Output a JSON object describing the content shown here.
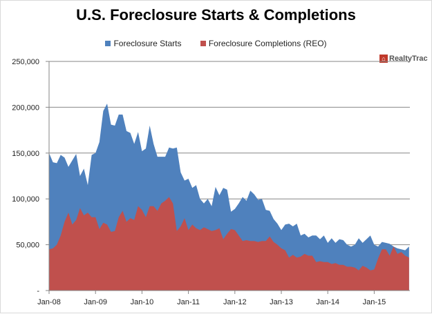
{
  "chart_data": {
    "type": "area",
    "title": "U.S. Foreclosure Starts & Completions",
    "xlabel": "",
    "ylabel": "",
    "x_tick_labels": [
      "Jan-08",
      "Jan-09",
      "Jan-10",
      "Jan-11",
      "Jan-12",
      "Jan-13",
      "Jan-14",
      "Jan-15"
    ],
    "x_start": "Jan-08",
    "x_end": "Oct-15",
    "y_tick_labels": [
      "250,000",
      "200,000",
      "150,000",
      "100,000",
      "50,000",
      "-"
    ],
    "ylim": [
      0,
      250000
    ],
    "grid": true,
    "legend_placement": "top",
    "logo_text": "RealtyTrac",
    "series": [
      {
        "name": "Foreclosure Starts",
        "color": "#4f81bd",
        "values": [
          150000,
          140000,
          139000,
          148000,
          145000,
          135000,
          142000,
          149000,
          125000,
          133000,
          115000,
          148000,
          150000,
          162000,
          196000,
          204000,
          181000,
          180000,
          192000,
          192000,
          174000,
          172000,
          160000,
          173000,
          152000,
          155000,
          180000,
          160000,
          146000,
          146000,
          146000,
          156000,
          155000,
          156000,
          129000,
          120000,
          122000,
          112000,
          115000,
          100000,
          95000,
          100000,
          92000,
          113000,
          104000,
          112000,
          110000,
          86000,
          89000,
          95000,
          102000,
          98000,
          109000,
          105000,
          99000,
          100000,
          88000,
          87000,
          78000,
          73000,
          66000,
          72000,
          73000,
          70000,
          73000,
          60000,
          62000,
          58000,
          60000,
          60000,
          56000,
          60000,
          52000,
          57000,
          52000,
          56000,
          55000,
          50000,
          48000,
          50000,
          57000,
          52000,
          56000,
          60000,
          50000,
          48000,
          53000,
          52000,
          51000,
          48000,
          46000,
          45000,
          44000,
          48000
        ]
      },
      {
        "name": "Foreclosure Completions (REO)",
        "color": "#c0504d",
        "values": [
          45000,
          46000,
          50000,
          60000,
          75000,
          85000,
          72000,
          77000,
          90000,
          82000,
          85000,
          80000,
          80000,
          67000,
          74000,
          72000,
          64000,
          65000,
          80000,
          87000,
          75000,
          79000,
          77000,
          92000,
          88000,
          80000,
          92000,
          92000,
          87000,
          95000,
          98000,
          102000,
          95000,
          65000,
          70000,
          79000,
          66000,
          72000,
          68000,
          66000,
          69000,
          67000,
          65000,
          66000,
          68000,
          56000,
          62000,
          67000,
          66000,
          60000,
          54000,
          55000,
          54000,
          54000,
          53000,
          54000,
          54000,
          59000,
          53000,
          50000,
          46000,
          44000,
          36000,
          39000,
          36000,
          37000,
          40000,
          38000,
          38000,
          31000,
          32000,
          31000,
          31000,
          29000,
          30000,
          28000,
          28000,
          26000,
          26000,
          25000,
          22000,
          27000,
          25000,
          22000,
          23000,
          35000,
          45000,
          45000,
          38000,
          48000,
          40000,
          42000,
          38000,
          36000
        ]
      }
    ]
  }
}
